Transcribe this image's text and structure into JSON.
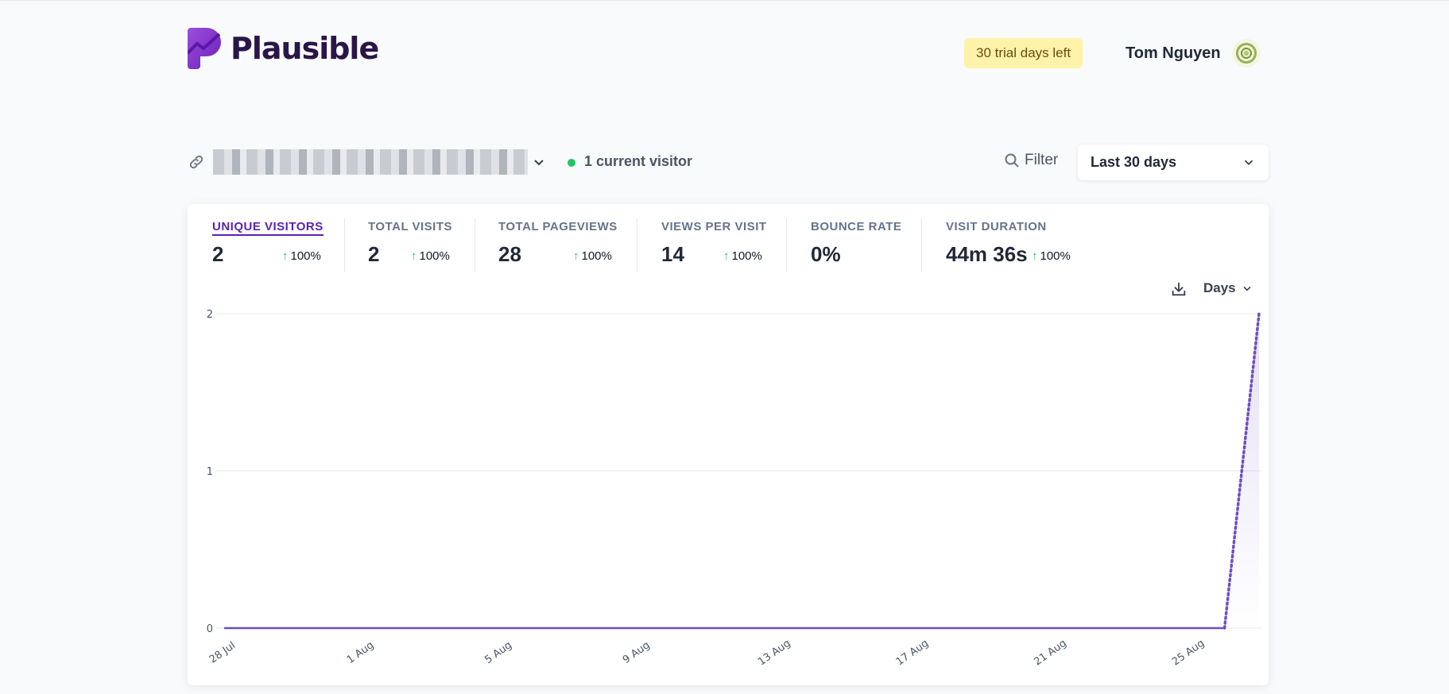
{
  "header": {
    "brand": "Plausible",
    "trial_badge": "30 trial days left",
    "user_name": "Tom Nguyen"
  },
  "toolbar": {
    "current_visitors": "1 current visitor",
    "filter_label": "Filter",
    "period_label": "Last 30 days"
  },
  "metrics": [
    {
      "label": "UNIQUE VISITORS",
      "value": "2",
      "change": "100%",
      "active": true
    },
    {
      "label": "TOTAL VISITS",
      "value": "2",
      "change": "100%"
    },
    {
      "label": "TOTAL PAGEVIEWS",
      "value": "28",
      "change": "100%"
    },
    {
      "label": "VIEWS PER VISIT",
      "value": "14",
      "change": "100%"
    },
    {
      "label": "BOUNCE RATE",
      "value": "0%",
      "change": ""
    },
    {
      "label": "VISIT DURATION",
      "value": "44m 36s",
      "change": "100%"
    }
  ],
  "graph": {
    "interval_label": "Days",
    "change_arrow": "↑"
  },
  "colors": {
    "accent": "#5b21b6",
    "line": "#6d4fc2",
    "positive": "#22c55e",
    "badge_bg": "#fef3a8"
  },
  "chart_data": {
    "type": "line",
    "x": [
      "28 Jul",
      "29 Jul",
      "30 Jul",
      "31 Jul",
      "1 Aug",
      "2 Aug",
      "3 Aug",
      "4 Aug",
      "5 Aug",
      "6 Aug",
      "7 Aug",
      "8 Aug",
      "9 Aug",
      "10 Aug",
      "11 Aug",
      "12 Aug",
      "13 Aug",
      "14 Aug",
      "15 Aug",
      "16 Aug",
      "17 Aug",
      "18 Aug",
      "19 Aug",
      "20 Aug",
      "21 Aug",
      "22 Aug",
      "23 Aug",
      "24 Aug",
      "25 Aug",
      "26 Aug",
      "27 Aug"
    ],
    "series": [
      {
        "values": [
          0,
          0,
          0,
          0,
          0,
          0,
          0,
          0,
          0,
          0,
          0,
          0,
          0,
          0,
          0,
          0,
          0,
          0,
          0,
          0,
          0,
          0,
          0,
          0,
          0,
          0,
          0,
          0,
          0,
          0,
          2
        ]
      }
    ],
    "tick_labels_x": [
      "28 Jul",
      "1 Aug",
      "5 Aug",
      "9 Aug",
      "13 Aug",
      "17 Aug",
      "21 Aug",
      "25 Aug"
    ],
    "y_ticks": [
      0,
      1,
      2
    ],
    "ylim": [
      0,
      2
    ],
    "grid": true,
    "dotted_last_segment": true
  }
}
